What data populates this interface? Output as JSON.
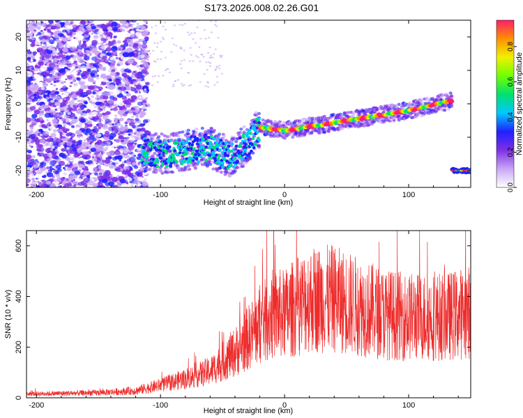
{
  "title": "S173.2026.008.02.26.G01",
  "chart_data": [
    {
      "type": "heatmap",
      "xlabel": "Height of straight line (km)",
      "ylabel": "Frequency (Hz)",
      "xlim": [
        -208,
        150
      ],
      "ylim": [
        -25,
        25
      ],
      "x_ticks": [
        -200,
        -100,
        0,
        100
      ],
      "y_ticks": [
        -20,
        -10,
        0,
        10,
        20
      ],
      "noise_region": {
        "x": [
          -208,
          -120
        ],
        "y": [
          -25,
          25
        ]
      },
      "trace": [
        {
          "x": -115,
          "y": -14
        },
        {
          "x": -100,
          "y": -15
        },
        {
          "x": -80,
          "y": -14
        },
        {
          "x": -60,
          "y": -13
        },
        {
          "x": -45,
          "y": -16
        },
        {
          "x": -30,
          "y": -12
        },
        {
          "x": -20,
          "y": -7
        },
        {
          "x": 0,
          "y": -8
        },
        {
          "x": 50,
          "y": -5
        },
        {
          "x": 100,
          "y": -2
        },
        {
          "x": 135,
          "y": 1
        }
      ],
      "side_trace": {
        "x": [
          135,
          150
        ],
        "y": -20
      },
      "colorbar": {
        "label": "Normalized spectral amplitude",
        "ticks": [
          0.0,
          0.2,
          0.4,
          0.6,
          0.8
        ],
        "range": [
          0,
          0.95
        ],
        "colors": [
          "#ffffff",
          "#c9a6f5",
          "#7f2fe6",
          "#2020ff",
          "#00c8ff",
          "#00e070",
          "#70ff00",
          "#f0f000",
          "#ff9000",
          "#ff1e6a"
        ]
      }
    },
    {
      "type": "line",
      "xlabel": "Height of straight line (km)",
      "ylabel": "SNR (10 * v/v)",
      "xlim": [
        -208,
        150
      ],
      "ylim": [
        0,
        660
      ],
      "x_ticks": [
        -200,
        -100,
        0,
        100
      ],
      "y_ticks": [
        0,
        200,
        400,
        600
      ],
      "color": "#ee2b2b",
      "envelope": [
        {
          "x": -208,
          "y": 15
        },
        {
          "x": -150,
          "y": 20
        },
        {
          "x": -120,
          "y": 28
        },
        {
          "x": -100,
          "y": 50
        },
        {
          "x": -80,
          "y": 75
        },
        {
          "x": -60,
          "y": 105
        },
        {
          "x": -40,
          "y": 180
        },
        {
          "x": -25,
          "y": 260
        },
        {
          "x": -10,
          "y": 330
        },
        {
          "x": 0,
          "y": 330
        },
        {
          "x": 20,
          "y": 390
        },
        {
          "x": 40,
          "y": 390
        },
        {
          "x": 60,
          "y": 360
        },
        {
          "x": 80,
          "y": 330
        },
        {
          "x": 100,
          "y": 320
        },
        {
          "x": 130,
          "y": 320
        },
        {
          "x": 150,
          "y": 340
        }
      ]
    }
  ]
}
